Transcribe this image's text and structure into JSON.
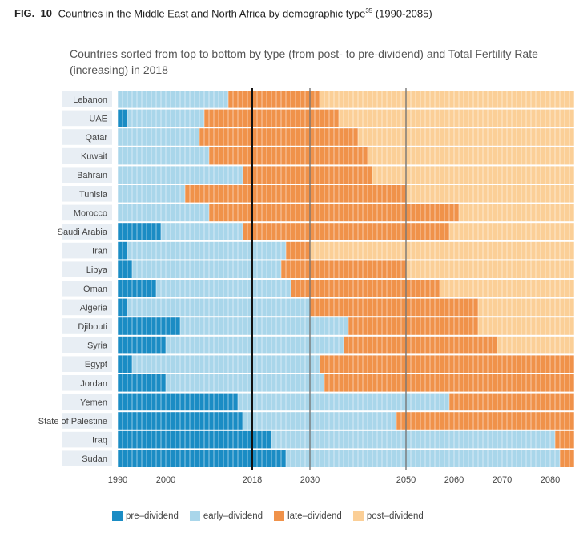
{
  "figure": {
    "label": "FIG.",
    "number": "10",
    "title": "Countries in the Middle East and North Africa by demographic type",
    "footnote": "35",
    "range": "(1990-2085)"
  },
  "subtitle": "Countries sorted from top to bottom by type (from post- to pre-dividend) and Total Fertility Rate (increasing) in 2018",
  "colors": {
    "pre-dividend": "#1a8cc4",
    "early-dividend": "#a9d6ea",
    "late-dividend": "#f0924a",
    "post-dividend": "#fbcf97"
  },
  "chart_data": {
    "type": "heatmap",
    "x_start": 1990,
    "x_end": 2085,
    "x_ticks": [
      1990,
      2000,
      2018,
      2030,
      2050,
      2060,
      2070,
      2080
    ],
    "reference_lines": [
      2018,
      2030,
      2050
    ],
    "legend": [
      "pre–dividend",
      "early–dividend",
      "late–dividend",
      "post–dividend"
    ],
    "categories": [
      "pre-dividend",
      "early-dividend",
      "late-dividend",
      "post-dividend"
    ],
    "countries": [
      {
        "name": "Lebanon",
        "segments": [
          [
            "early-dividend",
            1990,
            2013
          ],
          [
            "late-dividend",
            2013,
            2032
          ],
          [
            "post-dividend",
            2032,
            2085
          ]
        ]
      },
      {
        "name": "UAE",
        "segments": [
          [
            "pre-dividend",
            1990,
            1992
          ],
          [
            "early-dividend",
            1992,
            2008
          ],
          [
            "late-dividend",
            2008,
            2036
          ],
          [
            "post-dividend",
            2036,
            2085
          ]
        ]
      },
      {
        "name": "Qatar",
        "segments": [
          [
            "early-dividend",
            1990,
            2007
          ],
          [
            "late-dividend",
            2007,
            2040
          ],
          [
            "post-dividend",
            2040,
            2085
          ]
        ]
      },
      {
        "name": "Kuwait",
        "segments": [
          [
            "early-dividend",
            1990,
            2009
          ],
          [
            "late-dividend",
            2009,
            2042
          ],
          [
            "post-dividend",
            2042,
            2085
          ]
        ]
      },
      {
        "name": "Bahrain",
        "segments": [
          [
            "early-dividend",
            1990,
            2016
          ],
          [
            "late-dividend",
            2016,
            2043
          ],
          [
            "post-dividend",
            2043,
            2085
          ]
        ]
      },
      {
        "name": "Tunisia",
        "segments": [
          [
            "early-dividend",
            1990,
            2004
          ],
          [
            "late-dividend",
            2004,
            2050
          ],
          [
            "post-dividend",
            2050,
            2085
          ]
        ]
      },
      {
        "name": "Morocco",
        "segments": [
          [
            "early-dividend",
            1990,
            2009
          ],
          [
            "late-dividend",
            2009,
            2061
          ],
          [
            "post-dividend",
            2061,
            2085
          ]
        ]
      },
      {
        "name": "Saudi Arabia",
        "segments": [
          [
            "pre-dividend",
            1990,
            1999
          ],
          [
            "early-dividend",
            1999,
            2016
          ],
          [
            "late-dividend",
            2016,
            2059
          ],
          [
            "post-dividend",
            2059,
            2085
          ]
        ]
      },
      {
        "name": "Iran",
        "segments": [
          [
            "pre-dividend",
            1990,
            1992
          ],
          [
            "early-dividend",
            1992,
            2025
          ],
          [
            "late-dividend",
            2025,
            2030
          ],
          [
            "post-dividend",
            2030,
            2085
          ]
        ]
      },
      {
        "name": "Libya",
        "segments": [
          [
            "pre-dividend",
            1990,
            1993
          ],
          [
            "early-dividend",
            1993,
            2024
          ],
          [
            "late-dividend",
            2024,
            2050
          ],
          [
            "post-dividend",
            2050,
            2085
          ]
        ]
      },
      {
        "name": "Oman",
        "segments": [
          [
            "pre-dividend",
            1990,
            1998
          ],
          [
            "early-dividend",
            1998,
            2026
          ],
          [
            "late-dividend",
            2026,
            2057
          ],
          [
            "post-dividend",
            2057,
            2085
          ]
        ]
      },
      {
        "name": "Algeria",
        "segments": [
          [
            "pre-dividend",
            1990,
            1992
          ],
          [
            "early-dividend",
            1992,
            2030
          ],
          [
            "late-dividend",
            2030,
            2065
          ],
          [
            "post-dividend",
            2065,
            2085
          ]
        ]
      },
      {
        "name": "Djibouti",
        "segments": [
          [
            "pre-dividend",
            1990,
            2003
          ],
          [
            "early-dividend",
            2003,
            2038
          ],
          [
            "late-dividend",
            2038,
            2065
          ],
          [
            "post-dividend",
            2065,
            2085
          ]
        ]
      },
      {
        "name": "Syria",
        "segments": [
          [
            "pre-dividend",
            1990,
            2000
          ],
          [
            "early-dividend",
            2000,
            2037
          ],
          [
            "late-dividend",
            2037,
            2069
          ],
          [
            "post-dividend",
            2069,
            2085
          ]
        ]
      },
      {
        "name": "Egypt",
        "segments": [
          [
            "pre-dividend",
            1990,
            1993
          ],
          [
            "early-dividend",
            1993,
            2032
          ],
          [
            "late-dividend",
            2032,
            2085
          ]
        ]
      },
      {
        "name": "Jordan",
        "segments": [
          [
            "pre-dividend",
            1990,
            2000
          ],
          [
            "early-dividend",
            2000,
            2033
          ],
          [
            "late-dividend",
            2033,
            2085
          ]
        ]
      },
      {
        "name": "Yemen",
        "segments": [
          [
            "pre-dividend",
            1990,
            2015
          ],
          [
            "early-dividend",
            2015,
            2059
          ],
          [
            "late-dividend",
            2059,
            2085
          ]
        ]
      },
      {
        "name": "State of Palestine",
        "segments": [
          [
            "pre-dividend",
            1990,
            2016
          ],
          [
            "early-dividend",
            2016,
            2048
          ],
          [
            "late-dividend",
            2048,
            2085
          ]
        ]
      },
      {
        "name": "Iraq",
        "segments": [
          [
            "pre-dividend",
            1990,
            2022
          ],
          [
            "early-dividend",
            2022,
            2081
          ],
          [
            "late-dividend",
            2081,
            2085
          ]
        ]
      },
      {
        "name": "Sudan",
        "segments": [
          [
            "pre-dividend",
            1990,
            2025
          ],
          [
            "early-dividend",
            2025,
            2082
          ],
          [
            "late-dividend",
            2082,
            2085
          ]
        ]
      }
    ]
  }
}
